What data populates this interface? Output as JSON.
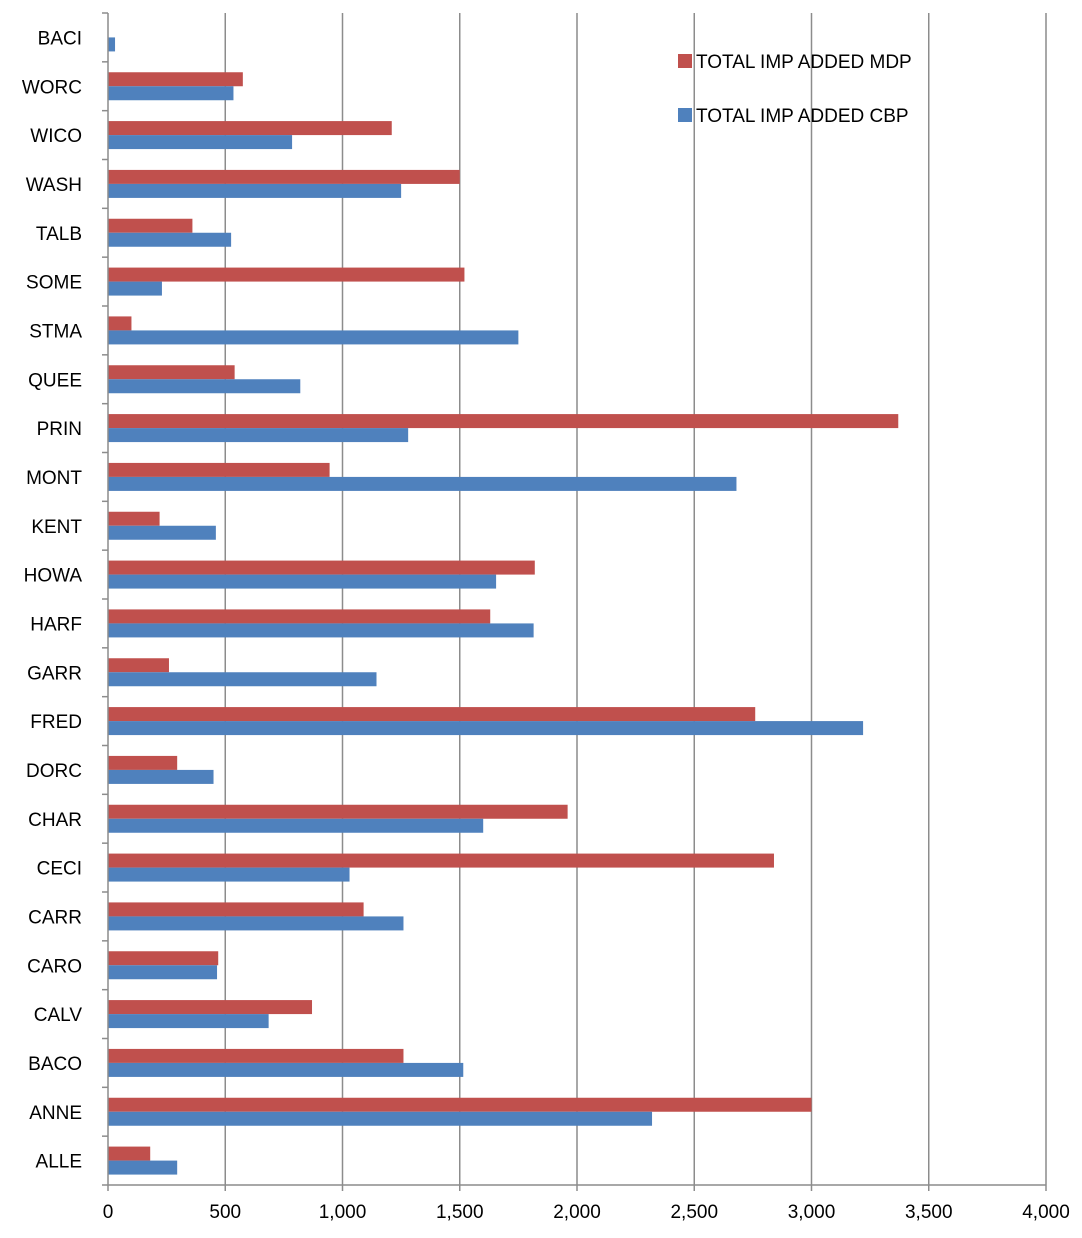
{
  "chart_data": {
    "type": "bar",
    "orientation": "horizontal",
    "categories": [
      "ALLE",
      "ANNE",
      "BACO",
      "CALV",
      "CARO",
      "CARR",
      "CECI",
      "CHAR",
      "DORC",
      "FRED",
      "GARR",
      "HARF",
      "HOWA",
      "KENT",
      "MONT",
      "PRIN",
      "QUEE",
      "STMA",
      "SOME",
      "TALB",
      "WASH",
      "WICO",
      "WORC",
      "BACI"
    ],
    "series": [
      {
        "name": "TOTAL IMP ADDED MDP",
        "color": "#c0504d",
        "values": [
          180,
          3000,
          1260,
          870,
          470,
          1090,
          2840,
          1960,
          295,
          2760,
          260,
          1630,
          1820,
          220,
          945,
          3370,
          540,
          100,
          1520,
          360,
          1500,
          1210,
          575,
          0
        ]
      },
      {
        "name": "TOTAL IMP ADDED CBP",
        "color": "#4f81bd",
        "values": [
          295,
          2320,
          1515,
          685,
          465,
          1260,
          1030,
          1600,
          450,
          3220,
          1145,
          1815,
          1655,
          460,
          2680,
          1280,
          820,
          1750,
          230,
          525,
          1250,
          785,
          535,
          30
        ]
      }
    ],
    "xlim": [
      0,
      4000
    ],
    "xticks": [
      "0",
      "500",
      "1,000",
      "1,500",
      "2,000",
      "2,500",
      "3,000",
      "3,500",
      "4,000"
    ],
    "grid": "vertical",
    "legend": "top-right",
    "title": "",
    "xlabel": "",
    "ylabel": ""
  }
}
